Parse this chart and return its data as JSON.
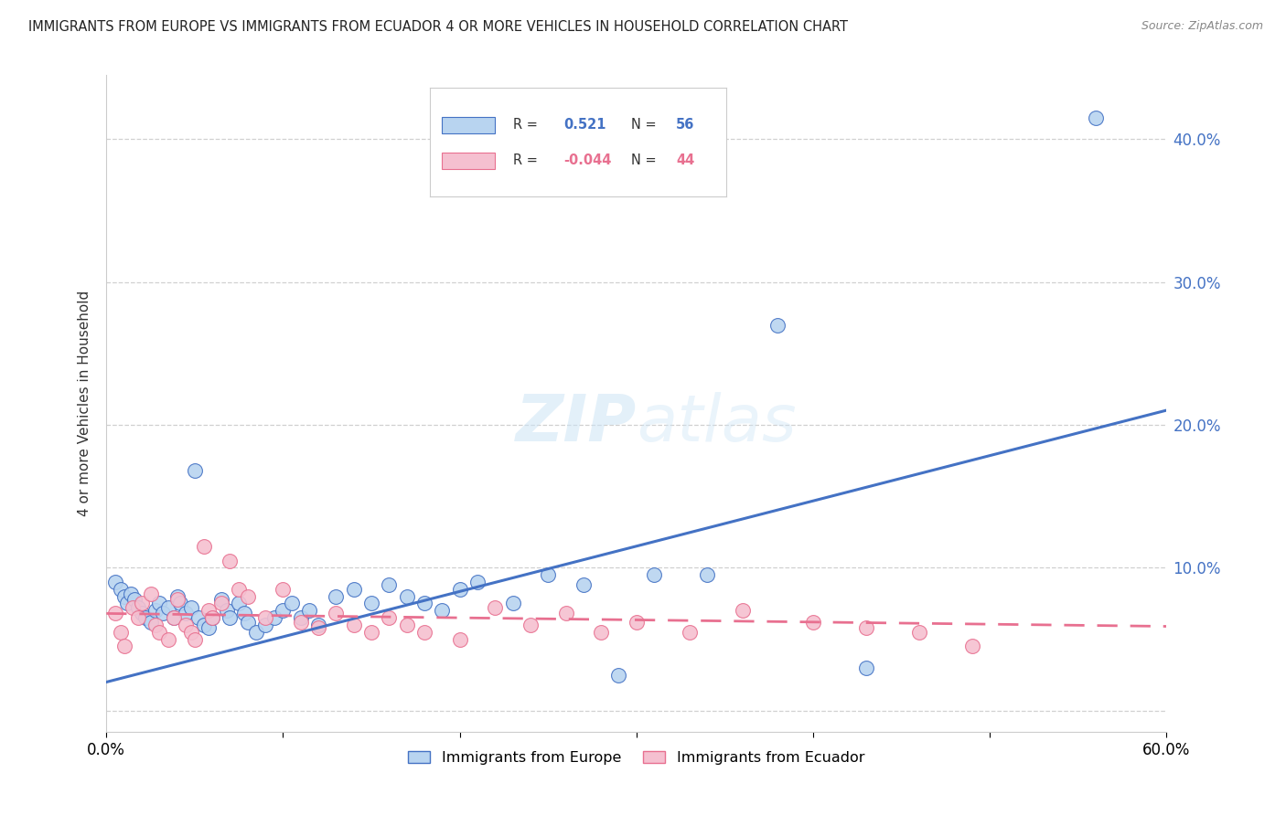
{
  "title": "IMMIGRANTS FROM EUROPE VS IMMIGRANTS FROM ECUADOR 4 OR MORE VEHICLES IN HOUSEHOLD CORRELATION CHART",
  "source": "Source: ZipAtlas.com",
  "ylabel": "4 or more Vehicles in Household",
  "xlabel_legend1": "Immigrants from Europe",
  "xlabel_legend2": "Immigrants from Ecuador",
  "r_europe": 0.521,
  "n_europe": 56,
  "r_ecuador": -0.044,
  "n_ecuador": 44,
  "xlim": [
    0.0,
    0.6
  ],
  "ylim": [
    -0.015,
    0.445
  ],
  "yticks": [
    0.0,
    0.1,
    0.2,
    0.3,
    0.4
  ],
  "ytick_labels": [
    "",
    "10.0%",
    "20.0%",
    "30.0%",
    "40.0%"
  ],
  "xticks": [
    0.0,
    0.1,
    0.2,
    0.3,
    0.4,
    0.5,
    0.6
  ],
  "xtick_labels": [
    "0.0%",
    "",
    "",
    "",
    "",
    "",
    "60.0%"
  ],
  "color_europe": "#b8d4f0",
  "color_ecuador": "#f5c0d0",
  "line_color_europe": "#4472c4",
  "line_color_ecuador": "#e87090",
  "watermark_zip": "ZIP",
  "watermark_atlas": "atlas",
  "background_color": "#ffffff",
  "europe_x": [
    0.005,
    0.008,
    0.01,
    0.012,
    0.014,
    0.016,
    0.018,
    0.02,
    0.022,
    0.025,
    0.028,
    0.03,
    0.032,
    0.035,
    0.038,
    0.04,
    0.042,
    0.045,
    0.048,
    0.05,
    0.052,
    0.055,
    0.058,
    0.06,
    0.065,
    0.068,
    0.07,
    0.075,
    0.078,
    0.08,
    0.085,
    0.09,
    0.095,
    0.1,
    0.105,
    0.11,
    0.115,
    0.12,
    0.13,
    0.14,
    0.15,
    0.16,
    0.17,
    0.18,
    0.19,
    0.2,
    0.21,
    0.23,
    0.25,
    0.27,
    0.29,
    0.31,
    0.34,
    0.38,
    0.43,
    0.56
  ],
  "europe_y": [
    0.09,
    0.085,
    0.08,
    0.075,
    0.082,
    0.078,
    0.072,
    0.068,
    0.065,
    0.062,
    0.07,
    0.075,
    0.068,
    0.072,
    0.065,
    0.08,
    0.075,
    0.068,
    0.072,
    0.168,
    0.065,
    0.06,
    0.058,
    0.065,
    0.078,
    0.07,
    0.065,
    0.075,
    0.068,
    0.062,
    0.055,
    0.06,
    0.065,
    0.07,
    0.075,
    0.065,
    0.07,
    0.06,
    0.08,
    0.085,
    0.075,
    0.088,
    0.08,
    0.075,
    0.07,
    0.085,
    0.09,
    0.075,
    0.095,
    0.088,
    0.025,
    0.095,
    0.095,
    0.27,
    0.03,
    0.415
  ],
  "ecuador_x": [
    0.005,
    0.008,
    0.01,
    0.015,
    0.018,
    0.02,
    0.025,
    0.028,
    0.03,
    0.035,
    0.038,
    0.04,
    0.045,
    0.048,
    0.05,
    0.055,
    0.058,
    0.06,
    0.065,
    0.07,
    0.075,
    0.08,
    0.09,
    0.1,
    0.11,
    0.12,
    0.13,
    0.14,
    0.15,
    0.16,
    0.17,
    0.18,
    0.2,
    0.22,
    0.24,
    0.26,
    0.28,
    0.3,
    0.33,
    0.36,
    0.4,
    0.43,
    0.46,
    0.49
  ],
  "ecuador_y": [
    0.068,
    0.055,
    0.045,
    0.072,
    0.065,
    0.075,
    0.082,
    0.06,
    0.055,
    0.05,
    0.065,
    0.078,
    0.06,
    0.055,
    0.05,
    0.115,
    0.07,
    0.065,
    0.075,
    0.105,
    0.085,
    0.08,
    0.065,
    0.085,
    0.062,
    0.058,
    0.068,
    0.06,
    0.055,
    0.065,
    0.06,
    0.055,
    0.05,
    0.072,
    0.06,
    0.068,
    0.055,
    0.062,
    0.055,
    0.07,
    0.062,
    0.058,
    0.055,
    0.045
  ]
}
